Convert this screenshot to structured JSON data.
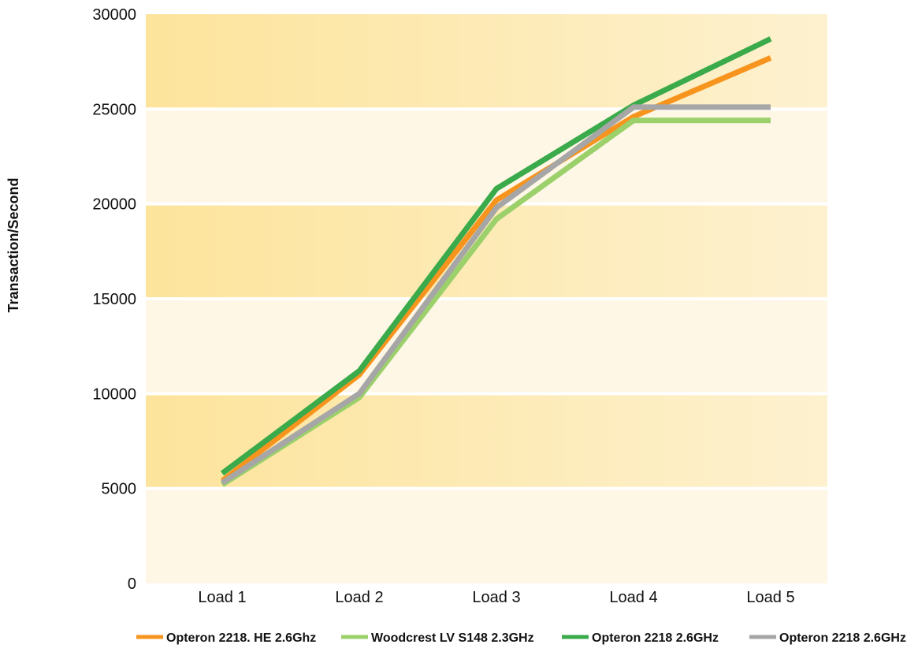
{
  "chart_data": {
    "type": "line",
    "title": "",
    "xlabel": "",
    "ylabel": "Transaction/Second",
    "categories": [
      "Load 1",
      "Load 2",
      "Load 3",
      "Load 4",
      "Load 5"
    ],
    "ylim": [
      0,
      30000
    ],
    "yticks": [
      0,
      5000,
      10000,
      15000,
      20000,
      25000,
      30000
    ],
    "legend_position": "bottom",
    "grid": "alternating horizontal bands",
    "colors": {
      "band_dark_start": "#fde49c",
      "band_dark_end": "#fdf1cf",
      "band_light": "#fef7e6"
    },
    "series": [
      {
        "name": "Opteron 2218. HE 2.6Ghz",
        "color": "#f7941d",
        "values": [
          5400,
          11000,
          20200,
          24600,
          27700
        ]
      },
      {
        "name": "Woodcrest LV S148 2.3GHz",
        "color": "#9bd06a",
        "values": [
          5200,
          9800,
          19200,
          24400,
          24400
        ]
      },
      {
        "name": "Opteron 2218 2.6GHz",
        "color": "#3aaa4a",
        "values": [
          5800,
          11200,
          20800,
          25200,
          28700
        ]
      },
      {
        "name": "Opteron 2218 2.6GHz",
        "color": "#a6a6a6",
        "values": [
          5300,
          10000,
          19800,
          25100,
          25100
        ]
      }
    ]
  }
}
